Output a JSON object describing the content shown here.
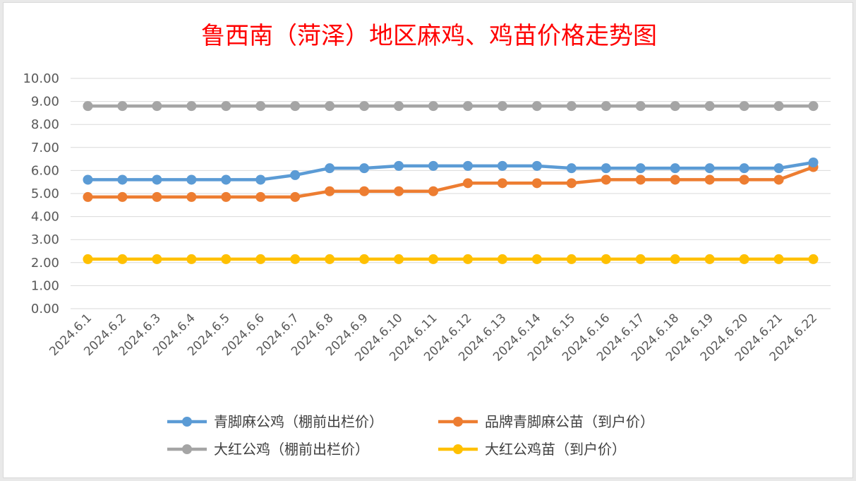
{
  "chart_data": {
    "type": "line",
    "title": "鲁西南（菏泽）地区麻鸡、鸡苗价格走势图",
    "xlabel": "",
    "ylabel": "",
    "ylim": [
      0,
      10
    ],
    "yticks": [
      "0.00",
      "1.00",
      "2.00",
      "3.00",
      "4.00",
      "5.00",
      "6.00",
      "7.00",
      "8.00",
      "9.00",
      "10.00"
    ],
    "grid": true,
    "legend_position": "bottom",
    "categories": [
      "2024.6.1",
      "2024.6.2",
      "2024.6.3",
      "2024.6.4",
      "2024.6.5",
      "2024.6.6",
      "2024.6.7",
      "2024.6.8",
      "2024.6.9",
      "2024.6.10",
      "2024.6.11",
      "2024.6.12",
      "2024.6.13",
      "2024.6.14",
      "2024.6.15",
      "2024.6.16",
      "2024.6.17",
      "2024.6.18",
      "2024.6.19",
      "2024.6.20",
      "2024.6.21",
      "2024.6.22"
    ],
    "series": [
      {
        "name": "青脚麻公鸡（棚前出栏价）",
        "color": "#5b9bd5",
        "values": [
          5.6,
          5.6,
          5.6,
          5.6,
          5.6,
          5.6,
          5.8,
          6.1,
          6.1,
          6.2,
          6.2,
          6.2,
          6.2,
          6.2,
          6.1,
          6.1,
          6.1,
          6.1,
          6.1,
          6.1,
          6.1,
          6.35
        ]
      },
      {
        "name": "品牌青脚麻公苗（到户价）",
        "color": "#ed7d31",
        "values": [
          4.85,
          4.85,
          4.85,
          4.85,
          4.85,
          4.85,
          4.85,
          5.1,
          5.1,
          5.1,
          5.1,
          5.45,
          5.45,
          5.45,
          5.45,
          5.6,
          5.6,
          5.6,
          5.6,
          5.6,
          5.6,
          6.15
        ]
      },
      {
        "name": "大红公鸡（棚前出栏价）",
        "color": "#a5a5a5",
        "values": [
          8.8,
          8.8,
          8.8,
          8.8,
          8.8,
          8.8,
          8.8,
          8.8,
          8.8,
          8.8,
          8.8,
          8.8,
          8.8,
          8.8,
          8.8,
          8.8,
          8.8,
          8.8,
          8.8,
          8.8,
          8.8,
          8.8
        ]
      },
      {
        "name": "大红公鸡苗（到户价）",
        "color": "#ffc000",
        "values": [
          2.15,
          2.15,
          2.15,
          2.15,
          2.15,
          2.15,
          2.15,
          2.15,
          2.15,
          2.15,
          2.15,
          2.15,
          2.15,
          2.15,
          2.15,
          2.15,
          2.15,
          2.15,
          2.15,
          2.15,
          2.15,
          2.15
        ]
      }
    ]
  }
}
